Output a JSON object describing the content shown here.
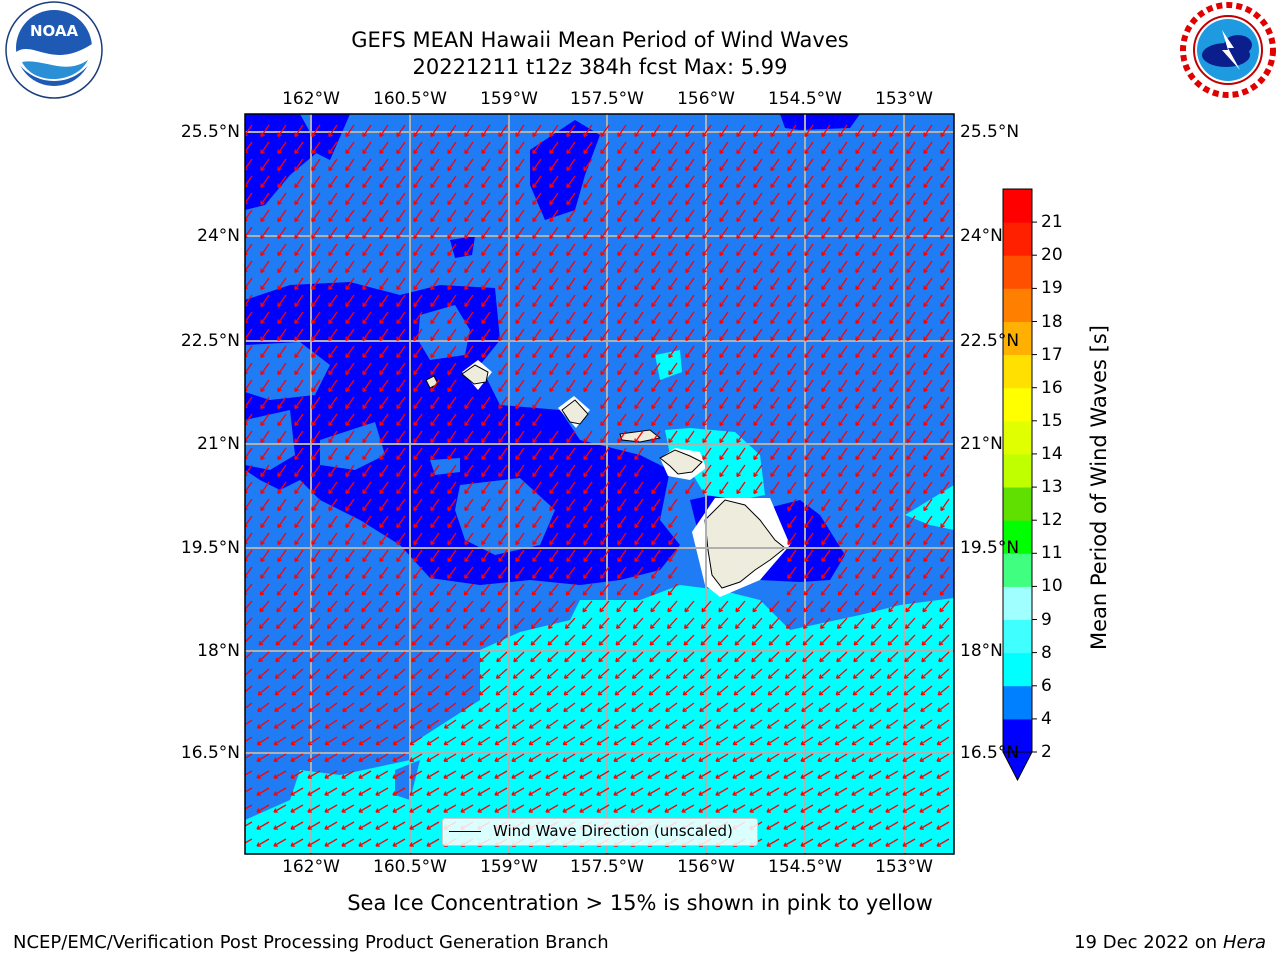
{
  "header": {
    "title_line1": "GEFS MEAN Hawaii Mean Period of Wind Waves",
    "title_line2": "20221211 t12z 384h fcst   Max: 5.99"
  },
  "logos": {
    "left": {
      "name": "noaa-logo",
      "text": "NOAA",
      "ring_text": "NATIONAL OCEANIC AND ATMOSPHERIC ADMINISTRATION · U.S. DEPARTMENT OF COMMERCE"
    },
    "right": {
      "name": "nws-logo",
      "ring_text": "NATIONAL WEATHER SERVICE"
    }
  },
  "map": {
    "lon_ticks": [
      "162°W",
      "160.5°W",
      "159°W",
      "157.5°W",
      "156°W",
      "154.5°W",
      "153°W"
    ],
    "lat_ticks": [
      "25.5°N",
      "24°N",
      "22.5°N",
      "21°N",
      "19.5°N",
      "18°N",
      "16.5°N"
    ],
    "legend_label": "Wind Wave Direction (unscaled)",
    "vector_color": "#ff0000",
    "land_color": "#eeecdc",
    "grid_color": "#b0b0b0"
  },
  "colorbar": {
    "label": "Mean Period of Wind Waves [s]",
    "ticks": [
      "2",
      "4",
      "6",
      "8",
      "9",
      "10",
      "11",
      "12",
      "13",
      "14",
      "15",
      "16",
      "17",
      "18",
      "19",
      "20",
      "21"
    ],
    "colors": [
      "#0000ff",
      "#0080ff",
      "#00ffff",
      "#40ffff",
      "#a0ffff",
      "#40ff80",
      "#00ff00",
      "#60e000",
      "#c0ff00",
      "#e0ff00",
      "#ffff00",
      "#ffe000",
      "#ffb000",
      "#ff8000",
      "#ff5000",
      "#ff2000",
      "#ff0000"
    ]
  },
  "note": "Sea Ice Concentration > 15% is shown in pink to yellow",
  "footer": {
    "left": "NCEP/EMC/Verification Post Processing Product Generation Branch",
    "right_date": "19 Dec 2022 on",
    "right_host": "Hera"
  }
}
